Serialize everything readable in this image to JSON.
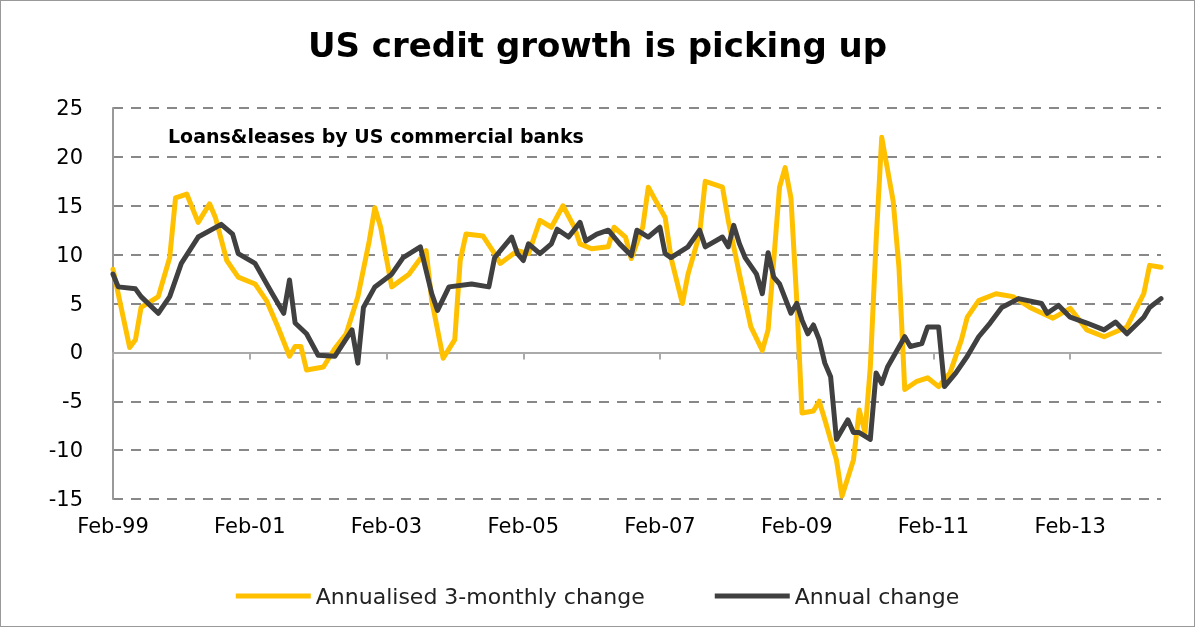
{
  "chart_data": {
    "type": "line",
    "title": "US credit growth is picking up",
    "subtitle": "Loans&leases by US commercial banks",
    "xlim": [
      "1999-02",
      "2014-06"
    ],
    "xticks": [
      {
        "value": "1999-02",
        "label": "Feb-99"
      },
      {
        "value": "2001-02",
        "label": "Feb-01"
      },
      {
        "value": "2003-02",
        "label": "Feb-03"
      },
      {
        "value": "2005-02",
        "label": "Feb-05"
      },
      {
        "value": "2007-02",
        "label": "Feb-07"
      },
      {
        "value": "2009-02",
        "label": "Feb-09"
      },
      {
        "value": "2011-02",
        "label": "Feb-11"
      },
      {
        "value": "2013-02",
        "label": "Feb-13"
      }
    ],
    "ylim": [
      -15,
      25
    ],
    "yticks": [
      -15,
      -10,
      -5,
      0,
      5,
      10,
      15,
      20,
      25
    ],
    "grid": "y",
    "legend": "bottom",
    "marker": "none",
    "line_style": "solid",
    "series": [
      {
        "name": "Annualised 3-monthly change",
        "color": "#ffc000",
        "x": [
          "1999-02",
          "1999-05",
          "1999-06",
          "1999-07",
          "1999-10",
          "1999-12",
          "2000-01",
          "2000-03",
          "2000-05",
          "2000-07",
          "2000-08",
          "2000-10",
          "2000-12",
          "2001-03",
          "2001-05",
          "2001-07",
          "2001-09",
          "2001-10",
          "2001-11",
          "2001-12",
          "2002-03",
          "2002-05",
          "2002-07",
          "2002-09",
          "2002-11",
          "2002-12",
          "2003-01",
          "2003-03",
          "2003-06",
          "2003-09",
          "2003-10",
          "2003-12",
          "2004-02",
          "2004-03",
          "2004-04",
          "2004-07",
          "2004-09",
          "2004-10",
          "2005-01",
          "2005-03",
          "2005-05",
          "2005-07",
          "2005-09",
          "2005-11",
          "2005-12",
          "2006-02",
          "2006-05",
          "2006-06",
          "2006-08",
          "2006-09",
          "2006-11",
          "2006-12",
          "2007-01",
          "2007-03",
          "2007-04",
          "2007-06",
          "2007-07",
          "2007-09",
          "2007-10",
          "2008-01",
          "2008-02",
          "2008-04",
          "2008-06",
          "2008-08",
          "2008-09",
          "2008-10",
          "2008-11",
          "2008-12",
          "2009-01",
          "2009-02",
          "2009-03",
          "2009-05",
          "2009-06",
          "2009-07",
          "2009-09",
          "2009-10",
          "2009-12",
          "2010-01",
          "2010-02",
          "2010-03",
          "2010-04",
          "2010-05",
          "2010-07",
          "2010-08",
          "2010-09",
          "2010-11",
          "2011-01",
          "2011-03",
          "2011-05",
          "2011-07",
          "2011-08",
          "2011-10",
          "2012-01",
          "2012-04",
          "2012-07",
          "2012-11",
          "2013-02",
          "2013-05",
          "2013-08",
          "2013-12",
          "2014-03",
          "2014-04",
          "2014-06"
        ],
        "values": [
          8.5,
          0.5,
          1.3,
          4.6,
          5.7,
          9.7,
          15.8,
          16.2,
          13.3,
          15.2,
          13.8,
          9.4,
          7.7,
          7.0,
          5.3,
          2.6,
          -0.4,
          0.6,
          0.6,
          -1.8,
          -1.5,
          0.4,
          1.9,
          5.7,
          11.4,
          14.8,
          12.8,
          6.7,
          8.0,
          10.4,
          5.3,
          -0.6,
          1.3,
          9.4,
          12.1,
          11.9,
          10.1,
          9.1,
          10.4,
          10.1,
          13.5,
          12.8,
          15.0,
          12.8,
          11.1,
          10.6,
          10.8,
          12.8,
          11.8,
          9.6,
          12.8,
          16.9,
          15.8,
          13.8,
          9.7,
          5.0,
          8.0,
          12.1,
          17.5,
          16.9,
          13.5,
          8.0,
          2.6,
          0.2,
          2.3,
          9.4,
          16.9,
          18.9,
          15.8,
          5.3,
          -6.2,
          -6.0,
          -5.0,
          -6.9,
          -11.0,
          -14.7,
          -11.0,
          -5.9,
          -8.2,
          -1.5,
          11.4,
          22.0,
          15.5,
          8.7,
          -3.8,
          -3.0,
          -2.6,
          -3.5,
          -2.1,
          1.3,
          3.6,
          5.3,
          6.0,
          5.7,
          4.6,
          3.5,
          4.5,
          2.3,
          1.6,
          2.6,
          6.0,
          8.9,
          8.7
        ]
      },
      {
        "name": "Annual change",
        "color": "#404040",
        "x": [
          "1999-02",
          "1999-03",
          "1999-06",
          "1999-07",
          "1999-10",
          "1999-12",
          "2000-02",
          "2000-05",
          "2000-09",
          "2000-11",
          "2000-12",
          "2001-03",
          "2001-06",
          "2001-08",
          "2001-09",
          "2001-10",
          "2001-12",
          "2002-02",
          "2002-05",
          "2002-08",
          "2002-09",
          "2002-10",
          "2002-12",
          "2003-03",
          "2003-05",
          "2003-08",
          "2003-10",
          "2003-11",
          "2004-01",
          "2004-05",
          "2004-08",
          "2004-09",
          "2004-12",
          "2005-01",
          "2005-02",
          "2005-03",
          "2005-05",
          "2005-07",
          "2005-08",
          "2005-10",
          "2005-12",
          "2006-01",
          "2006-03",
          "2006-05",
          "2006-07",
          "2006-09",
          "2006-10",
          "2006-12",
          "2007-02",
          "2007-03",
          "2007-04",
          "2007-07",
          "2007-09",
          "2007-10",
          "2008-01",
          "2008-02",
          "2008-03",
          "2008-04",
          "2008-05",
          "2008-07",
          "2008-08",
          "2008-09",
          "2008-10",
          "2008-11",
          "2009-01",
          "2009-02",
          "2009-03",
          "2009-04",
          "2009-05",
          "2009-06",
          "2009-07",
          "2009-08",
          "2009-09",
          "2009-11",
          "2009-12",
          "2010-01",
          "2010-03",
          "2010-04",
          "2010-05",
          "2010-06",
          "2010-09",
          "2010-10",
          "2010-12",
          "2011-01",
          "2011-03",
          "2011-04",
          "2011-06",
          "2011-08",
          "2011-10",
          "2011-12",
          "2012-02",
          "2012-05",
          "2012-09",
          "2012-10",
          "2012-12",
          "2013-02",
          "2013-05",
          "2013-08",
          "2013-10",
          "2013-12",
          "2014-03",
          "2014-04",
          "2014-06"
        ],
        "values": [
          8.0,
          6.7,
          6.5,
          5.7,
          4.0,
          5.7,
          9.1,
          11.8,
          13.1,
          12.1,
          10.1,
          9.1,
          6.0,
          4.0,
          7.4,
          3.0,
          1.9,
          -0.3,
          -0.4,
          2.3,
          -1.1,
          4.6,
          6.7,
          8.0,
          9.7,
          10.8,
          6.0,
          4.3,
          6.7,
          7.0,
          6.7,
          9.7,
          11.8,
          10.1,
          9.4,
          11.1,
          10.1,
          11.1,
          12.6,
          11.8,
          13.3,
          11.4,
          12.1,
          12.5,
          11.1,
          9.9,
          12.5,
          11.8,
          12.8,
          10.1,
          9.7,
          10.8,
          12.5,
          10.8,
          11.8,
          10.8,
          13.0,
          11.1,
          9.7,
          8.0,
          6.0,
          10.2,
          7.7,
          7.0,
          4.0,
          5.0,
          3.3,
          1.9,
          2.8,
          1.3,
          -1.1,
          -2.5,
          -8.9,
          -6.9,
          -8.2,
          -8.2,
          -8.9,
          -2.1,
          -3.2,
          -1.5,
          1.6,
          0.6,
          0.9,
          2.6,
          2.6,
          -3.5,
          -2.1,
          -0.4,
          1.6,
          3.0,
          4.6,
          5.5,
          5.0,
          4.0,
          4.8,
          3.6,
          3.0,
          2.3,
          3.1,
          1.9,
          3.6,
          4.6,
          5.5
        ]
      }
    ]
  }
}
